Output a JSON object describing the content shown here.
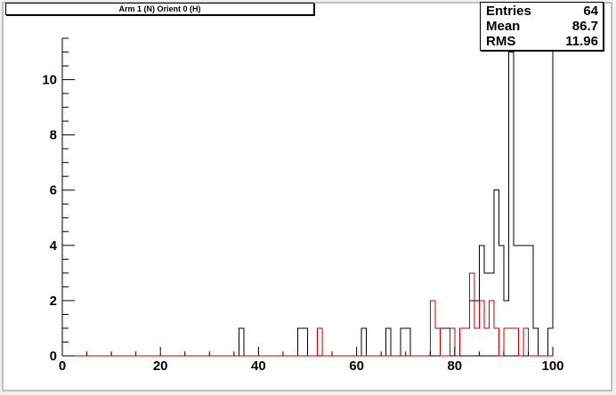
{
  "title": "Arm 1 (N) Orient 0 (H)",
  "stats": [
    {
      "label": "Entries",
      "value": "64"
    },
    {
      "label": "Mean",
      "value": "86.7"
    },
    {
      "label": "RMS",
      "value": "11.96"
    }
  ],
  "colors": {
    "background": "#f0f0f0",
    "frame": "#ffffff",
    "primary_series": "#000000",
    "secondary_series": "#cc0000"
  },
  "chart_data": {
    "type": "histogram",
    "bin_width": 1,
    "xlim": [
      0,
      100
    ],
    "ylim": [
      0,
      11.5
    ],
    "x_ticks": [
      0,
      20,
      40,
      60,
      80,
      100
    ],
    "y_ticks": [
      0,
      2,
      4,
      6,
      8,
      10
    ],
    "grid": false,
    "series": [
      {
        "color": "#000000",
        "bins": [
          {
            "x": 36,
            "y": 1
          },
          {
            "x": 48,
            "y": 1
          },
          {
            "x": 49,
            "y": 1
          },
          {
            "x": 61,
            "y": 1
          },
          {
            "x": 66,
            "y": 1
          },
          {
            "x": 69,
            "y": 1
          },
          {
            "x": 70,
            "y": 1
          },
          {
            "x": 77,
            "y": 1
          },
          {
            "x": 78,
            "y": 1
          },
          {
            "x": 79,
            "y": 1
          },
          {
            "x": 81,
            "y": 1
          },
          {
            "x": 82,
            "y": 1
          },
          {
            "x": 83,
            "y": 2
          },
          {
            "x": 84,
            "y": 2
          },
          {
            "x": 85,
            "y": 4
          },
          {
            "x": 86,
            "y": 3
          },
          {
            "x": 87,
            "y": 3
          },
          {
            "x": 88,
            "y": 6
          },
          {
            "x": 89,
            "y": 4
          },
          {
            "x": 90,
            "y": 2
          },
          {
            "x": 91,
            "y": 11
          },
          {
            "x": 92,
            "y": 4
          },
          {
            "x": 93,
            "y": 4
          },
          {
            "x": 94,
            "y": 4
          },
          {
            "x": 95,
            "y": 4
          },
          {
            "x": 96,
            "y": 1
          },
          {
            "x": 99,
            "y": 1
          },
          {
            "x": 100,
            "y": 11.5
          }
        ]
      },
      {
        "color": "#cc0000",
        "bins": [
          {
            "x": 52,
            "y": 1
          },
          {
            "x": 75,
            "y": 2
          },
          {
            "x": 76,
            "y": 1
          },
          {
            "x": 79,
            "y": 1
          },
          {
            "x": 81,
            "y": 1
          },
          {
            "x": 82,
            "y": 1
          },
          {
            "x": 83,
            "y": 3
          },
          {
            "x": 84,
            "y": 1
          },
          {
            "x": 85,
            "y": 2
          },
          {
            "x": 86,
            "y": 1
          },
          {
            "x": 87,
            "y": 2
          },
          {
            "x": 88,
            "y": 1
          },
          {
            "x": 90,
            "y": 1
          },
          {
            "x": 91,
            "y": 1
          },
          {
            "x": 92,
            "y": 1
          },
          {
            "x": 94,
            "y": 1
          }
        ]
      }
    ]
  }
}
